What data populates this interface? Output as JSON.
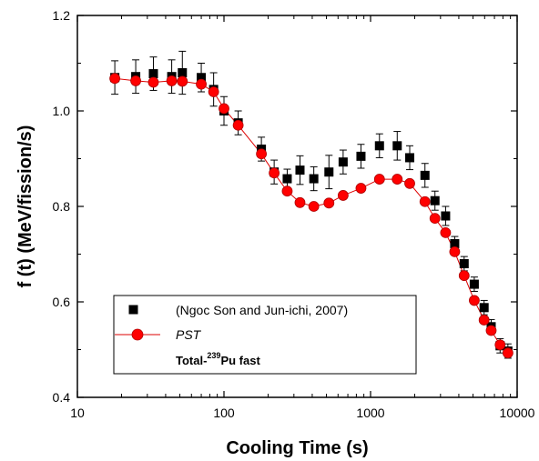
{
  "chart_data": {
    "type": "scatter",
    "xlabel": "Cooling Time (s)",
    "ylabel": "f (t) (MeV/fission/s)",
    "xscale": "log",
    "xlim": [
      10,
      10000
    ],
    "ylim": [
      0.4,
      1.2
    ],
    "x_ticks": [
      10,
      100,
      1000,
      10000
    ],
    "x_tick_labels": [
      "10",
      "100",
      "1000",
      "10000"
    ],
    "y_ticks": [
      0.4,
      0.6,
      0.8,
      1.0,
      1.2
    ],
    "y_tick_labels": [
      "0.4",
      "0.6",
      "0.8",
      "1.0",
      "1.2"
    ],
    "grid": false,
    "legend_position": "bottom-left",
    "legend_note_prefix": "Total-",
    "legend_note_sup": "239",
    "legend_note_suffix": "Pu fast",
    "series": [
      {
        "name": "(Ngoc Son and Jun-ichi, 2007)",
        "marker": "square",
        "color": "#000000",
        "x": [
          18,
          25,
          33,
          44,
          52,
          70,
          85,
          100,
          125,
          180,
          220,
          270,
          330,
          410,
          520,
          650,
          860,
          1150,
          1520,
          1850,
          2350,
          2750,
          3250,
          3750,
          4350,
          5100,
          5950,
          6650,
          7650,
          8650
        ],
        "y": [
          1.07,
          1.072,
          1.078,
          1.072,
          1.08,
          1.07,
          1.045,
          1.0,
          0.975,
          0.92,
          0.872,
          0.858,
          0.876,
          0.858,
          0.872,
          0.893,
          0.905,
          0.927,
          0.927,
          0.902,
          0.865,
          0.812,
          0.78,
          0.722,
          0.68,
          0.637,
          0.588,
          0.548,
          0.508,
          0.497
        ],
        "err": [
          0.035,
          0.035,
          0.035,
          0.035,
          0.045,
          0.03,
          0.035,
          0.03,
          0.025,
          0.025,
          0.025,
          0.02,
          0.03,
          0.025,
          0.035,
          0.025,
          0.025,
          0.025,
          0.03,
          0.025,
          0.025,
          0.02,
          0.02,
          0.015,
          0.015,
          0.015,
          0.015,
          0.015,
          0.015,
          0.015
        ]
      },
      {
        "name": "PST",
        "marker": "circle",
        "color": "#ff0000",
        "line_color": "#dd0000",
        "x": [
          18,
          25,
          33,
          44,
          52,
          70,
          85,
          100,
          125,
          180,
          220,
          270,
          330,
          410,
          520,
          650,
          860,
          1150,
          1520,
          1850,
          2350,
          2750,
          3250,
          3750,
          4350,
          5100,
          5950,
          6650,
          7650,
          8650
        ],
        "y": [
          1.068,
          1.063,
          1.06,
          1.063,
          1.062,
          1.056,
          1.04,
          1.005,
          0.97,
          0.91,
          0.87,
          0.832,
          0.808,
          0.8,
          0.807,
          0.823,
          0.838,
          0.857,
          0.857,
          0.848,
          0.81,
          0.775,
          0.745,
          0.705,
          0.655,
          0.603,
          0.562,
          0.54,
          0.51,
          0.493
        ]
      }
    ]
  }
}
